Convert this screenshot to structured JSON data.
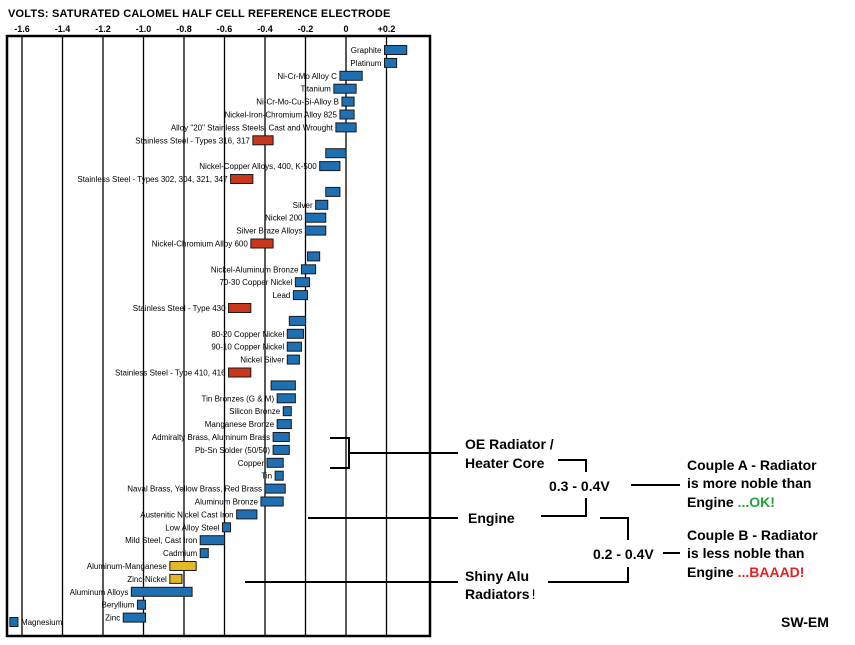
{
  "chart_data": {
    "type": "bar",
    "title": "VOLTS: SATURATED CALOMEL HALF CELL REFERENCE ELECTRODE",
    "x_ticks": [
      "-1.6",
      "-1.4",
      "-1.2",
      "-1.0",
      "-0.8",
      "-0.6",
      "-0.4",
      "-0.2",
      "0",
      "+0.2"
    ],
    "xlim": [
      -1.68,
      0.34
    ],
    "grid": true,
    "orientation": "horizontal",
    "colors": {
      "normal": "#1f6fb3",
      "active_stainless": "#c8371c",
      "aluminum_alloy": "#e3b825"
    },
    "series": [
      {
        "category": "Graphite",
        "range": [
          0.19,
          0.3
        ],
        "kind": "normal"
      },
      {
        "category": "Platinum",
        "range": [
          0.19,
          0.25
        ],
        "kind": "normal"
      },
      {
        "category": "Ni-Cr-Mo Alloy C",
        "range": [
          -0.03,
          0.08
        ],
        "kind": "normal"
      },
      {
        "category": "Titanium",
        "range": [
          -0.06,
          0.05
        ],
        "kind": "normal"
      },
      {
        "category": "Ni-Cr-Mo-Cu-Si-Alloy B",
        "range": [
          -0.02,
          0.04
        ],
        "kind": "normal"
      },
      {
        "category": "Nickel-Iron-Chromium Alloy 825",
        "range": [
          -0.03,
          0.04
        ],
        "kind": "normal"
      },
      {
        "category": "Alloy \"20\" Stainless Steels, Cast and Wrought",
        "range": [
          -0.05,
          0.05
        ],
        "kind": "normal"
      },
      {
        "category": "Stainless Steel - Types 316, 317",
        "range": [
          -0.46,
          -0.36
        ],
        "kind": "active_stainless"
      },
      {
        "category": "",
        "range": [
          -0.1,
          0.0
        ],
        "kind": "normal"
      },
      {
        "category": "Nickel-Copper Alloys, 400, K-500",
        "range": [
          -0.13,
          -0.03
        ],
        "kind": "normal"
      },
      {
        "category": "Stainless Steel - Types 302, 304, 321, 347",
        "range": [
          -0.57,
          -0.46
        ],
        "kind": "active_stainless"
      },
      {
        "category": "",
        "range": [
          -0.1,
          -0.03
        ],
        "kind": "normal"
      },
      {
        "category": "Silver",
        "range": [
          -0.15,
          -0.09
        ],
        "kind": "normal"
      },
      {
        "category": "Nickel 200",
        "range": [
          -0.2,
          -0.1
        ],
        "kind": "normal"
      },
      {
        "category": "Silver Braze Alloys",
        "range": [
          -0.2,
          -0.1
        ],
        "kind": "normal"
      },
      {
        "category": "Nickel-Chromium Alloy 600",
        "range": [
          -0.47,
          -0.36
        ],
        "kind": "active_stainless"
      },
      {
        "category": "",
        "range": [
          -0.19,
          -0.13
        ],
        "kind": "normal"
      },
      {
        "category": "Nickel-Aluminum Bronze",
        "range": [
          -0.22,
          -0.15
        ],
        "kind": "normal"
      },
      {
        "category": "70-30 Copper Nickel",
        "range": [
          -0.25,
          -0.18
        ],
        "kind": "normal"
      },
      {
        "category": "Lead",
        "range": [
          -0.26,
          -0.19
        ],
        "kind": "normal"
      },
      {
        "category": "Stainless Steel - Type 430",
        "range": [
          -0.58,
          -0.47
        ],
        "kind": "active_stainless"
      },
      {
        "category": "",
        "range": [
          -0.28,
          -0.2
        ],
        "kind": "normal"
      },
      {
        "category": "80-20 Copper Nickel",
        "range": [
          -0.29,
          -0.21
        ],
        "kind": "normal"
      },
      {
        "category": "90-10 Copper Nickel",
        "range": [
          -0.29,
          -0.22
        ],
        "kind": "normal"
      },
      {
        "category": "Nickel Silver",
        "range": [
          -0.29,
          -0.23
        ],
        "kind": "normal"
      },
      {
        "category": "Stainless Steel - Type 410, 416",
        "range": [
          -0.58,
          -0.47
        ],
        "kind": "active_stainless"
      },
      {
        "category": "",
        "range": [
          -0.37,
          -0.25
        ],
        "kind": "normal"
      },
      {
        "category": "Tin Bronzes (G & M)",
        "range": [
          -0.34,
          -0.25
        ],
        "kind": "normal"
      },
      {
        "category": "Silicon Bronze",
        "range": [
          -0.31,
          -0.27
        ],
        "kind": "normal"
      },
      {
        "category": "Manganese Bronze",
        "range": [
          -0.34,
          -0.27
        ],
        "kind": "normal"
      },
      {
        "category": "Admiralty Brass, Aluminum Brass",
        "range": [
          -0.36,
          -0.28
        ],
        "kind": "normal"
      },
      {
        "category": "Pb-Sn Solder (50/50)",
        "range": [
          -0.36,
          -0.28
        ],
        "kind": "normal"
      },
      {
        "category": "Copper",
        "range": [
          -0.39,
          -0.31
        ],
        "kind": "normal"
      },
      {
        "category": "Tin",
        "range": [
          -0.35,
          -0.31
        ],
        "kind": "normal"
      },
      {
        "category": "Naval Brass, Yellow Brass, Red Brass",
        "range": [
          -0.4,
          -0.3
        ],
        "kind": "normal"
      },
      {
        "category": "Aluminum Bronze",
        "range": [
          -0.42,
          -0.31
        ],
        "kind": "normal"
      },
      {
        "category": "Austenitic Nickel Cast Iron",
        "range": [
          -0.54,
          -0.44
        ],
        "kind": "normal"
      },
      {
        "category": "Low Alloy Steel",
        "range": [
          -0.61,
          -0.57
        ],
        "kind": "normal"
      },
      {
        "category": "Mild Steel, Cast Iron",
        "range": [
          -0.72,
          -0.6
        ],
        "kind": "normal"
      },
      {
        "category": "Cadmium",
        "range": [
          -0.72,
          -0.68
        ],
        "kind": "normal"
      },
      {
        "category": "Aluminum-Manganese",
        "range": [
          -0.87,
          -0.74
        ],
        "kind": "aluminum_alloy"
      },
      {
        "category": "Zinc-Nickel",
        "range": [
          -0.87,
          -0.81
        ],
        "kind": "aluminum_alloy"
      },
      {
        "category": "Aluminum Alloys",
        "range": [
          -1.06,
          -0.76
        ],
        "kind": "normal"
      },
      {
        "category": "Beryllium",
        "range": [
          -1.03,
          -0.99
        ],
        "kind": "normal"
      },
      {
        "category": "Zinc",
        "range": [
          -1.1,
          -0.99
        ],
        "kind": "normal"
      },
      {
        "category": "Magnesium",
        "range": [
          -1.66,
          -1.62
        ],
        "kind": "normal"
      }
    ],
    "annotations": {
      "oe_radiator": [
        "OE Radiator /",
        "Heater Core"
      ],
      "engine": "Engine",
      "shiny_alu": [
        "Shiny Alu",
        "Radiators"
      ],
      "shiny_alu_mark": "!",
      "voltage_a": "0.3 - 0.4V",
      "voltage_b": "0.2 - 0.4V",
      "couple_a": {
        "line1": "Couple A - Radiator",
        "line2": "is more noble than",
        "line3_prefix": "Engine ",
        "line3_verdict": "...OK!",
        "verdict_color": "#22a33a"
      },
      "couple_b": {
        "line1": "Couple B - Radiator",
        "line2": "is less noble than",
        "line3_prefix": "Engine ",
        "line3_verdict": "...BAAAD!",
        "verdict_color": "#e02424"
      },
      "credit": "SW-EM"
    }
  }
}
